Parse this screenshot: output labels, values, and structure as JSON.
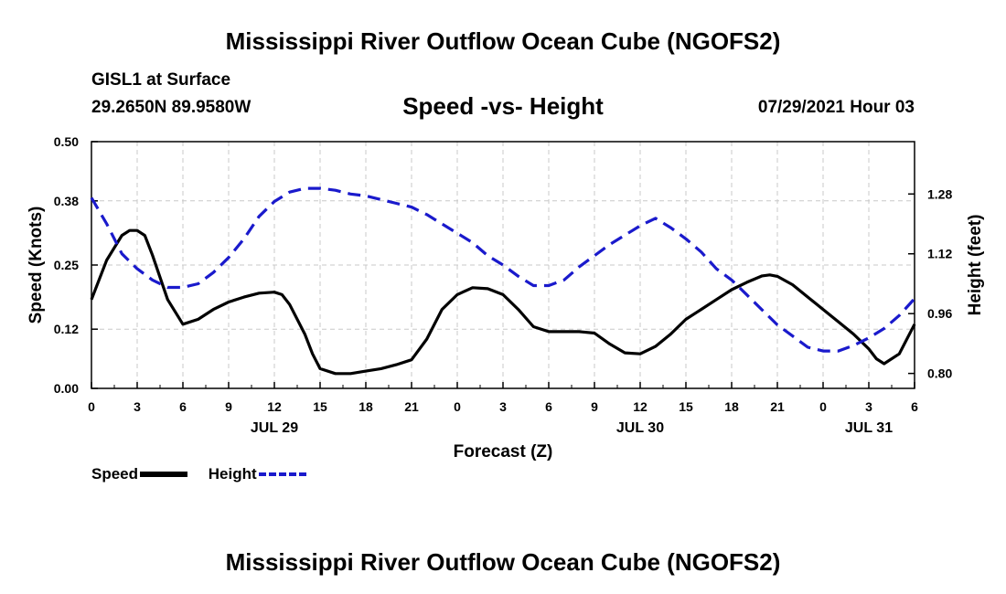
{
  "header": {
    "title": "Mississippi River Outflow Ocean Cube (NGOFS2)",
    "station": "GISL1 at Surface",
    "coords": "29.2650N  89.9580W",
    "subtitle": "Speed -vs- Height",
    "datetime": "07/29/2021 Hour 03"
  },
  "footer": {
    "title": "Mississippi River Outflow Ocean Cube (NGOFS2)"
  },
  "legend": {
    "speed_label": "Speed",
    "height_label": "Height",
    "speed_color": "#000000",
    "height_color": "#1a1acc"
  },
  "chart_data": {
    "type": "line",
    "title": "Speed -vs- Height",
    "xlabel": "Forecast (Z)",
    "ylabel": "Speed (Knots)",
    "y2label": "Height (feet)",
    "xlim": [
      0,
      54
    ],
    "ylim": [
      0,
      0.5
    ],
    "y2lim": [
      0.76,
      1.42
    ],
    "yticks": [
      "0.00",
      "0.12",
      "0.25",
      "0.38",
      "0.50"
    ],
    "y2ticks": [
      "0.80",
      "0.96",
      "1.12",
      "1.28"
    ],
    "xticks": [
      {
        "h": 0,
        "label": "0"
      },
      {
        "h": 3,
        "label": "3"
      },
      {
        "h": 6,
        "label": "6"
      },
      {
        "h": 9,
        "label": "9"
      },
      {
        "h": 12,
        "label": "12"
      },
      {
        "h": 15,
        "label": "15"
      },
      {
        "h": 18,
        "label": "18"
      },
      {
        "h": 21,
        "label": "21"
      },
      {
        "h": 24,
        "label": "0"
      },
      {
        "h": 27,
        "label": "3"
      },
      {
        "h": 30,
        "label": "6"
      },
      {
        "h": 33,
        "label": "9"
      },
      {
        "h": 36,
        "label": "12"
      },
      {
        "h": 39,
        "label": "15"
      },
      {
        "h": 42,
        "label": "18"
      },
      {
        "h": 45,
        "label": "21"
      },
      {
        "h": 48,
        "label": "0"
      },
      {
        "h": 51,
        "label": "3"
      },
      {
        "h": 54,
        "label": "6"
      }
    ],
    "date_labels": [
      {
        "h": 12,
        "label": "JUL 29"
      },
      {
        "h": 36,
        "label": "JUL 30"
      },
      {
        "h": 51,
        "label": "JUL 31"
      }
    ],
    "grid": true,
    "series": [
      {
        "name": "Speed",
        "axis": "left",
        "style": "solid",
        "x": [
          0,
          1,
          2,
          2.5,
          3,
          3.5,
          4,
          5,
          6,
          7,
          8,
          9,
          10,
          11,
          12,
          12.5,
          13,
          14,
          14.5,
          15,
          16,
          17,
          18,
          19,
          20,
          21,
          22,
          23,
          24,
          25,
          26,
          27,
          28,
          29,
          30,
          31,
          32,
          33,
          34,
          35,
          36,
          37,
          38,
          39,
          40,
          41,
          42,
          43,
          44,
          44.5,
          45,
          46,
          47,
          48,
          49,
          50,
          51,
          51.5,
          52,
          53,
          54
        ],
        "values": [
          0.18,
          0.26,
          0.31,
          0.32,
          0.32,
          0.31,
          0.27,
          0.18,
          0.13,
          0.14,
          0.16,
          0.175,
          0.185,
          0.193,
          0.195,
          0.19,
          0.17,
          0.11,
          0.07,
          0.04,
          0.03,
          0.03,
          0.035,
          0.04,
          0.048,
          0.058,
          0.1,
          0.16,
          0.19,
          0.204,
          0.202,
          0.19,
          0.16,
          0.125,
          0.115,
          0.115,
          0.115,
          0.112,
          0.09,
          0.072,
          0.07,
          0.085,
          0.11,
          0.14,
          0.16,
          0.18,
          0.2,
          0.215,
          0.228,
          0.23,
          0.227,
          0.21,
          0.185,
          0.16,
          0.135,
          0.11,
          0.08,
          0.06,
          0.05,
          0.07,
          0.13
        ]
      },
      {
        "name": "Height",
        "axis": "right",
        "style": "dashed",
        "x": [
          0,
          1,
          2,
          3,
          4,
          5,
          6,
          7,
          8,
          9,
          10,
          11,
          12,
          13,
          14,
          15,
          16,
          17,
          18,
          19,
          20,
          21,
          22,
          23,
          24,
          25,
          26,
          27,
          28,
          29,
          30,
          31,
          32,
          33,
          34,
          35,
          36,
          37,
          38,
          39,
          40,
          41,
          42,
          43,
          44,
          45,
          46,
          47,
          48,
          49,
          50,
          51,
          52,
          53,
          54
        ],
        "values": [
          1.27,
          1.2,
          1.12,
          1.08,
          1.05,
          1.03,
          1.03,
          1.04,
          1.07,
          1.11,
          1.16,
          1.22,
          1.26,
          1.285,
          1.295,
          1.295,
          1.29,
          1.28,
          1.275,
          1.265,
          1.255,
          1.245,
          1.225,
          1.2,
          1.175,
          1.15,
          1.115,
          1.09,
          1.06,
          1.035,
          1.035,
          1.05,
          1.085,
          1.115,
          1.145,
          1.17,
          1.195,
          1.215,
          1.19,
          1.16,
          1.125,
          1.08,
          1.05,
          1.01,
          0.97,
          0.93,
          0.9,
          0.87,
          0.86,
          0.86,
          0.875,
          0.895,
          0.92,
          0.955,
          1.0
        ]
      }
    ]
  }
}
